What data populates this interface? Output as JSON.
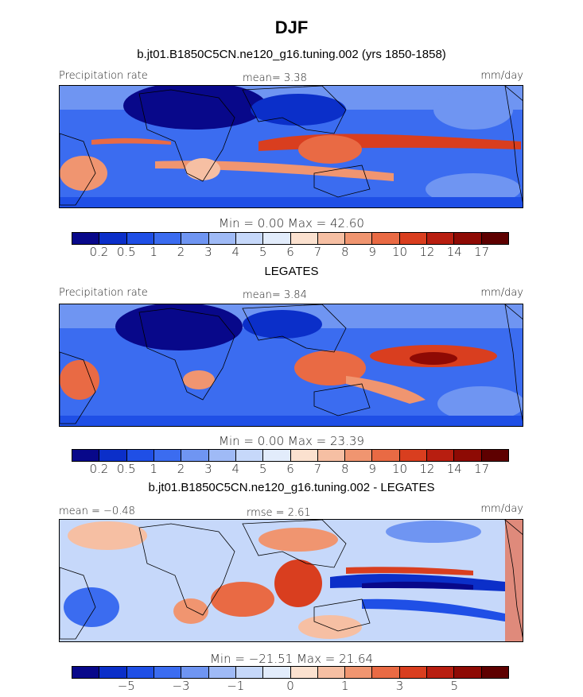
{
  "figure": {
    "season": "DJF"
  },
  "panel1": {
    "title": "b.jt01.B1850C5CN.ne120_g16.tuning.002 (yrs 1850-1858)",
    "variable": "Precipitation rate",
    "mean_text": "mean=   3.38",
    "units": "mm/day",
    "minmax": "Min =    0.00  Max =   42.60",
    "colorbar_labels": [
      "0.2",
      "0.5",
      "1",
      "2",
      "3",
      "4",
      "5",
      "6",
      "7",
      "8",
      "9",
      "10",
      "12",
      "14",
      "17"
    ]
  },
  "panel2": {
    "title": "LEGATES",
    "variable": "Precipitation rate",
    "mean_text": "mean=   3.84",
    "units": "mm/day",
    "minmax": "Min =    0.00  Max =   23.39",
    "colorbar_labels": [
      "0.2",
      "0.5",
      "1",
      "2",
      "3",
      "4",
      "5",
      "6",
      "7",
      "8",
      "9",
      "10",
      "12",
      "14",
      "17"
    ]
  },
  "panel3": {
    "title": "b.jt01.B1850C5CN.ne120_g16.tuning.002 - LEGATES",
    "mean_text": "mean =  −0.48",
    "rmse_text": "rmse =   2.61",
    "units": "mm/day",
    "minmax": "Min =  −21.51  Max =   21.64",
    "colorbar_labels": [
      "−5",
      "−3",
      "−1",
      "0",
      "1",
      "3",
      "5"
    ]
  },
  "colors": {
    "scale": [
      "#08088a",
      "#0b2fc9",
      "#1f4fe6",
      "#3b6cf0",
      "#6f95f2",
      "#9fbaf6",
      "#c6d8fa",
      "#e2ecfb",
      "#fbe1cf",
      "#f6bfa3",
      "#f09570",
      "#e96a44",
      "#d93e1f",
      "#b81e10",
      "#8e0a04",
      "#5e0000"
    ]
  }
}
